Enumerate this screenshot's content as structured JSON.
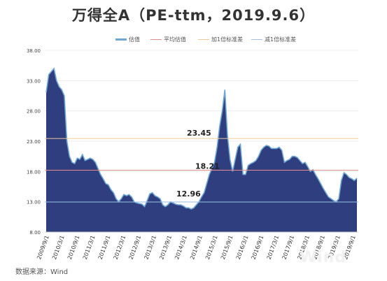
{
  "title": "万得全A（PE-ttm，2019.9.6）",
  "source": "数据来源：Wind",
  "watermark": "Wind",
  "chart_data": {
    "type": "area",
    "legend": [
      "估值",
      "平均估值",
      "加1倍标准差",
      "减1倍标准差"
    ],
    "colors": {
      "area_fill": "#2e3e7e",
      "area_edge": "#6fa7d3",
      "mean": "#e98c8c",
      "plus_sd": "#f2c79a",
      "minus_sd": "#9fc3e6"
    },
    "y_ticks": [
      "8.00",
      "13.00",
      "18.00",
      "23.00",
      "28.00",
      "33.00",
      "38.00"
    ],
    "ylim": [
      8,
      38
    ],
    "x_ticks": [
      "2009/9/1",
      "2010/3/1",
      "2010/9/1",
      "2011/3/1",
      "2011/9/1",
      "2012/3/1",
      "2012/9/1",
      "2013/3/1",
      "2013/9/1",
      "2014/3/1",
      "2014/9/1",
      "2015/3/1",
      "2015/9/1",
      "2016/3/1",
      "2016/9/1",
      "2017/3/1",
      "2017/9/1",
      "2018/3/1",
      "2018/9/1",
      "2019/3/1",
      "2019/9/1"
    ],
    "reference_lines": {
      "mean": 18.21,
      "plus_1sd": 23.45,
      "minus_1sd": 12.96
    },
    "reference_labels": {
      "mean": "18.21",
      "plus_1sd": "23.45",
      "minus_1sd": "12.96"
    },
    "series": [
      {
        "name": "估值",
        "x": [
          "2009/9/1",
          "2009/10/1",
          "2009/11/1",
          "2009/12/1",
          "2010/1/1",
          "2010/2/1",
          "2010/3/1",
          "2010/4/1",
          "2010/5/1",
          "2010/6/1",
          "2010/7/1",
          "2010/8/1",
          "2010/9/1",
          "2010/10/1",
          "2010/11/1",
          "2010/12/1",
          "2011/1/1",
          "2011/2/1",
          "2011/3/1",
          "2011/4/1",
          "2011/5/1",
          "2011/6/1",
          "2011/7/1",
          "2011/8/1",
          "2011/9/1",
          "2011/10/1",
          "2011/11/1",
          "2011/12/1",
          "2012/1/1",
          "2012/2/1",
          "2012/3/1",
          "2012/4/1",
          "2012/5/1",
          "2012/6/1",
          "2012/7/1",
          "2012/8/1",
          "2012/9/1",
          "2012/10/1",
          "2012/11/1",
          "2012/12/1",
          "2013/1/1",
          "2013/2/1",
          "2013/3/1",
          "2013/4/1",
          "2013/5/1",
          "2013/6/1",
          "2013/7/1",
          "2013/8/1",
          "2013/9/1",
          "2013/10/1",
          "2013/11/1",
          "2013/12/1",
          "2014/1/1",
          "2014/2/1",
          "2014/3/1",
          "2014/4/1",
          "2014/5/1",
          "2014/6/1",
          "2014/7/1",
          "2014/8/1",
          "2014/9/1",
          "2014/10/1",
          "2014/11/1",
          "2014/12/1",
          "2015/1/1",
          "2015/2/1",
          "2015/3/1",
          "2015/4/1",
          "2015/5/1",
          "2015/6/1",
          "2015/7/1",
          "2015/8/1",
          "2015/9/1",
          "2015/10/1",
          "2015/11/1",
          "2015/12/1",
          "2016/1/1",
          "2016/2/1",
          "2016/3/1",
          "2016/4/1",
          "2016/5/1",
          "2016/6/1",
          "2016/7/1",
          "2016/8/1",
          "2016/9/1",
          "2016/10/1",
          "2016/11/1",
          "2016/12/1",
          "2017/1/1",
          "2017/2/1",
          "2017/3/1",
          "2017/4/1",
          "2017/5/1",
          "2017/6/1",
          "2017/7/1",
          "2017/8/1",
          "2017/9/1",
          "2017/10/1",
          "2017/11/1",
          "2017/12/1",
          "2018/1/1",
          "2018/2/1",
          "2018/3/1",
          "2018/4/1",
          "2018/5/1",
          "2018/6/1",
          "2018/7/1",
          "2018/8/1",
          "2018/9/1",
          "2018/10/1",
          "2018/11/1",
          "2018/12/1",
          "2019/1/1",
          "2019/2/1",
          "2019/3/1",
          "2019/4/1",
          "2019/5/1",
          "2019/6/1",
          "2019/7/1",
          "2019/8/1",
          "2019/9/1"
        ],
        "values": [
          31.0,
          34.0,
          34.5,
          35.0,
          33.0,
          32.0,
          31.5,
          30.5,
          23.0,
          20.5,
          19.5,
          19.3,
          20.2,
          20.0,
          20.8,
          19.8,
          20.0,
          20.2,
          20.0,
          19.5,
          18.5,
          17.5,
          16.8,
          16.0,
          15.8,
          15.0,
          14.5,
          13.5,
          13.0,
          13.5,
          14.2,
          14.0,
          14.2,
          13.8,
          13.0,
          12.8,
          12.7,
          12.6,
          12.2,
          13.2,
          14.3,
          14.5,
          14.0,
          13.8,
          13.5,
          12.5,
          12.2,
          12.5,
          13.0,
          12.8,
          12.6,
          12.5,
          12.5,
          12.3,
          12.0,
          12.0,
          11.8,
          12.0,
          12.5,
          13.0,
          13.8,
          14.5,
          16.0,
          17.5,
          18.5,
          19.5,
          22.0,
          25.5,
          28.0,
          31.5,
          24.0,
          20.0,
          18.0,
          20.0,
          22.0,
          22.5,
          17.5,
          17.5,
          19.0,
          19.3,
          19.5,
          19.8,
          20.5,
          21.5,
          22.0,
          22.3,
          22.2,
          21.8,
          21.8,
          21.8,
          22.0,
          21.5,
          19.5,
          19.8,
          20.0,
          20.5,
          20.5,
          20.3,
          19.8,
          19.3,
          19.5,
          18.8,
          18.0,
          18.3,
          17.5,
          16.8,
          16.0,
          15.2,
          14.5,
          13.8,
          13.5,
          13.2,
          13.0,
          13.5,
          16.5,
          17.8,
          17.5,
          17.0,
          16.8,
          16.5,
          16.9
        ]
      }
    ]
  }
}
